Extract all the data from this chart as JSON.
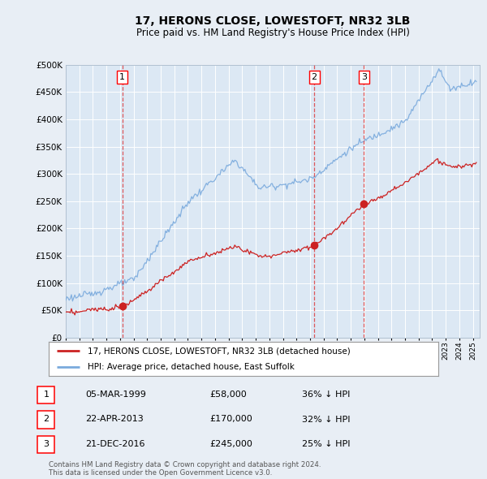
{
  "title": "17, HERONS CLOSE, LOWESTOFT, NR32 3LB",
  "subtitle": "Price paid vs. HM Land Registry's House Price Index (HPI)",
  "ylim": [
    0,
    500000
  ],
  "yticks": [
    0,
    50000,
    100000,
    150000,
    200000,
    250000,
    300000,
    350000,
    400000,
    450000,
    500000
  ],
  "xlim_start": 1995.0,
  "xlim_end": 2025.5,
  "fig_bg_color": "#e8eef5",
  "plot_bg_color": "#dce8f4",
  "grid_color": "#c8d8e8",
  "hpi_color": "#7aaadd",
  "price_color": "#cc2222",
  "vline_color": "#dd3333",
  "sales": [
    {
      "date_num": 1999.17,
      "price": 58000,
      "label": "1",
      "date_str": "05-MAR-1999",
      "pct": "36% ↓ HPI"
    },
    {
      "date_num": 2013.31,
      "price": 170000,
      "label": "2",
      "date_str": "22-APR-2013",
      "pct": "32% ↓ HPI"
    },
    {
      "date_num": 2016.97,
      "price": 245000,
      "label": "3",
      "date_str": "21-DEC-2016",
      "pct": "25% ↓ HPI"
    }
  ],
  "legend_property_label": "17, HERONS CLOSE, LOWESTOFT, NR32 3LB (detached house)",
  "legend_hpi_label": "HPI: Average price, detached house, East Suffolk",
  "footer1": "Contains HM Land Registry data © Crown copyright and database right 2024.",
  "footer2": "This data is licensed under the Open Government Licence v3.0."
}
